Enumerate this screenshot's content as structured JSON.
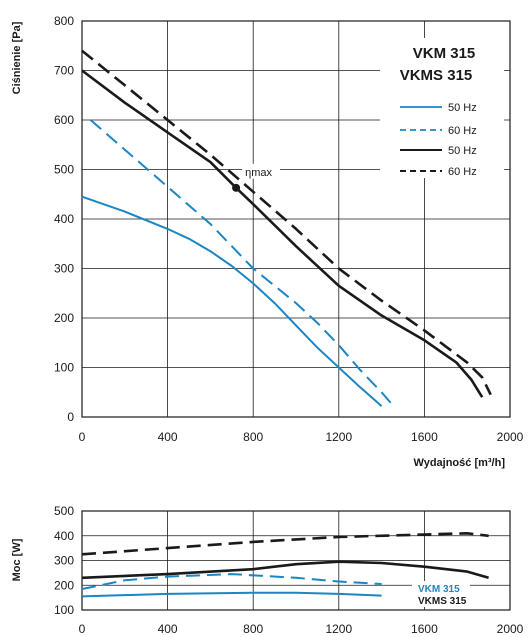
{
  "colors": {
    "vkm": "#1b86c4",
    "vkms": "#1a1a1a"
  },
  "chart_data": [
    {
      "type": "line",
      "ylabel": "Ciśnienie [Pa]",
      "xlabel": "Wydajność [m³/h]",
      "xlim": [
        0,
        2000
      ],
      "ylim": [
        0,
        800
      ],
      "xticks": [
        "0",
        "400",
        "800",
        "1200",
        "1600",
        "2000"
      ],
      "yticks": [
        "0",
        "100",
        "200",
        "300",
        "400",
        "500",
        "600",
        "700",
        "800"
      ],
      "grid": true,
      "legend": {
        "title_vkm": "VKM 315",
        "title_vkms": "VKMS 315",
        "entries": [
          "50 Hz",
          "60 Hz",
          "50 Hz",
          "60 Hz"
        ]
      },
      "annotation": {
        "label": "ηmax",
        "x": 720,
        "y": 463
      },
      "series": [
        {
          "group": "VKM 315",
          "freq": "50 Hz",
          "style": "solid",
          "color": "#1b86c4",
          "x": [
            0,
            200,
            400,
            500,
            600,
            700,
            800,
            900,
            1000,
            1100,
            1200,
            1300,
            1400
          ],
          "y": [
            445,
            415,
            380,
            360,
            335,
            305,
            270,
            230,
            185,
            140,
            100,
            60,
            22
          ]
        },
        {
          "group": "VKM 315",
          "freq": "60 Hz",
          "style": "dashed",
          "color": "#1b86c4",
          "x": [
            40,
            200,
            400,
            600,
            700,
            800,
            900,
            1000,
            1100,
            1200,
            1300,
            1400,
            1450
          ],
          "y": [
            600,
            540,
            465,
            390,
            345,
            300,
            265,
            230,
            190,
            145,
            95,
            50,
            25
          ]
        },
        {
          "group": "VKMS 315",
          "freq": "50 Hz",
          "style": "solid",
          "color": "#1a1a1a",
          "x": [
            0,
            200,
            400,
            600,
            720,
            800,
            1000,
            1200,
            1400,
            1600,
            1750,
            1820,
            1870
          ],
          "y": [
            700,
            635,
            575,
            515,
            463,
            430,
            345,
            265,
            205,
            155,
            110,
            75,
            40
          ]
        },
        {
          "group": "VKMS 315",
          "freq": "60 Hz",
          "style": "dashed",
          "color": "#1a1a1a",
          "x": [
            0,
            200,
            400,
            600,
            800,
            1000,
            1200,
            1400,
            1600,
            1800,
            1870,
            1910
          ],
          "y": [
            740,
            670,
            600,
            530,
            455,
            380,
            300,
            235,
            175,
            110,
            80,
            45
          ]
        }
      ]
    },
    {
      "type": "line",
      "ylabel": "Moc [W]",
      "xlim": [
        0,
        2000
      ],
      "ylim": [
        100,
        500
      ],
      "xticks": [
        "0",
        "400",
        "800",
        "1200",
        "1600",
        "2000"
      ],
      "yticks": [
        "100",
        "200",
        "300",
        "400",
        "500"
      ],
      "grid": true,
      "legend": {
        "vkm": "VKM 315",
        "vkms": "VKMS 315"
      },
      "series": [
        {
          "group": "VKM 315",
          "freq": "50 Hz",
          "style": "solid",
          "color": "#1b86c4",
          "x": [
            0,
            400,
            800,
            1000,
            1200,
            1400
          ],
          "y": [
            155,
            165,
            170,
            170,
            165,
            158
          ]
        },
        {
          "group": "VKM 315",
          "freq": "60 Hz",
          "style": "dashed",
          "color": "#1b86c4",
          "x": [
            0,
            200,
            400,
            700,
            1000,
            1200,
            1400
          ],
          "y": [
            185,
            220,
            235,
            245,
            230,
            215,
            205
          ]
        },
        {
          "group": "VKMS 315",
          "freq": "50 Hz",
          "style": "solid",
          "color": "#1a1a1a",
          "x": [
            0,
            400,
            800,
            1000,
            1200,
            1400,
            1600,
            1800,
            1900
          ],
          "y": [
            230,
            245,
            265,
            285,
            295,
            290,
            275,
            255,
            230
          ]
        },
        {
          "group": "VKMS 315",
          "freq": "60 Hz",
          "style": "dashed",
          "color": "#1a1a1a",
          "x": [
            0,
            400,
            800,
            1200,
            1600,
            1800,
            1900
          ],
          "y": [
            325,
            350,
            375,
            395,
            405,
            410,
            400
          ]
        }
      ]
    }
  ]
}
